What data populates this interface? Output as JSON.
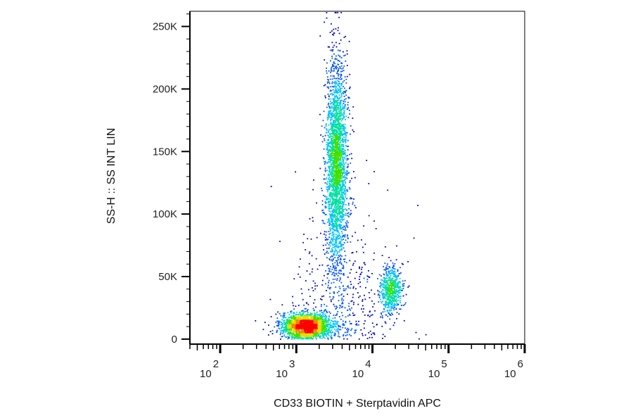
{
  "chart_data": {
    "type": "scatter",
    "subtype": "flow-cytometry-density-dot-plot",
    "title": "",
    "xlabel": "CD33 BIOTIN + Sterptavidin APC",
    "ylabel": "SS-H :: SS INT LIN",
    "x_scale": "log",
    "y_scale": "linear",
    "xlim": [
      40,
      1000000
    ],
    "ylim": [
      -4000,
      262144
    ],
    "x_ticks": [
      {
        "value": 100,
        "base": "10",
        "exp": "2"
      },
      {
        "value": 1000,
        "base": "10",
        "exp": "3"
      },
      {
        "value": 10000,
        "base": "10",
        "exp": "4"
      },
      {
        "value": 100000,
        "base": "10",
        "exp": "5"
      },
      {
        "value": 1000000,
        "base": "10",
        "exp": "6"
      }
    ],
    "y_ticks": [
      {
        "value": 0,
        "label": "0"
      },
      {
        "value": 50000,
        "label": "50K"
      },
      {
        "value": 100000,
        "label": "100K"
      },
      {
        "value": 150000,
        "label": "150K"
      },
      {
        "value": 200000,
        "label": "200K"
      },
      {
        "value": 250000,
        "label": "250K"
      }
    ],
    "grid": false,
    "legend": "none",
    "colormap": [
      "#0000c8",
      "#0050ff",
      "#00c0ff",
      "#00e0a0",
      "#40e000",
      "#e0e000",
      "#ff8000",
      "#ff0000"
    ],
    "populations": [
      {
        "name": "cluster-low",
        "x_center": 1300,
        "x_spread_log10": 0.16,
        "y_center": 11000,
        "y_spread": 5000,
        "count": 2100
      },
      {
        "name": "cluster-high-ss",
        "x_center": 3300,
        "x_spread_log10": 0.07,
        "y_center": 140000,
        "y_spread": 42000,
        "count": 2600
      },
      {
        "name": "cluster-cd33-pos",
        "x_center": 17000,
        "x_spread_log10": 0.07,
        "y_center": 40000,
        "y_spread": 10000,
        "count": 600
      },
      {
        "name": "scatter-background",
        "x_center": 4000,
        "x_spread_log10": 0.35,
        "y_center": 60000,
        "y_spread": 60000,
        "count": 450
      }
    ]
  }
}
